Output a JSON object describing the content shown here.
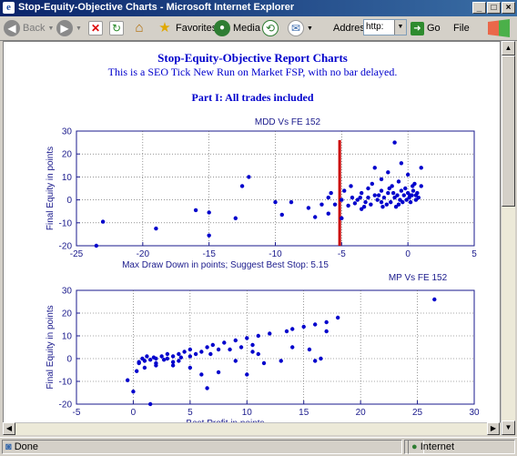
{
  "window": {
    "title": "Stop-Equity-Objective Charts - Microsoft Internet Explorer",
    "buttons": {
      "minimize": "_",
      "maximize": "□",
      "close": "×"
    }
  },
  "toolbar": {
    "back": "Back",
    "favorites": "Favorites",
    "media": "Media",
    "address_label": "Address",
    "address_value": "http:",
    "go": "Go",
    "file_menu": "File"
  },
  "page": {
    "title": "Stop-Equity-Objective Report Charts",
    "subtitle": "This is a SEO Tick New Run on Market FSP, with no bar delayed.",
    "part_heading": "Part I: All trades included"
  },
  "status": {
    "left": "Done",
    "zone": "Internet"
  },
  "colors": {
    "series": "#0000cc",
    "stop_line": "#cc0000",
    "axis_text": "#1a1a8c"
  },
  "chart_data": [
    {
      "type": "scatter",
      "title": "MDD Vs FE  152",
      "xlabel": "Max Draw Down in points; Suggest Best Stop: 5.15",
      "ylabel": "Final Equity in points",
      "xlim": [
        -25,
        5
      ],
      "ylim": [
        -20,
        30
      ],
      "xticks": [
        -25,
        -20,
        -15,
        -10,
        -5,
        0,
        5
      ],
      "yticks": [
        -20,
        -10,
        0,
        10,
        20,
        30
      ],
      "grid": true,
      "stop_line_x": -5.15,
      "points": [
        [
          -23.5,
          -20
        ],
        [
          -23,
          -9.5
        ],
        [
          -19,
          -12.5
        ],
        [
          -16,
          -4.5
        ],
        [
          -15,
          -5.5
        ],
        [
          -15,
          -15.5
        ],
        [
          -13,
          -8
        ],
        [
          -12.5,
          6
        ],
        [
          -12,
          10
        ],
        [
          -10,
          -1
        ],
        [
          -9.5,
          -6.5
        ],
        [
          -8.8,
          -1
        ],
        [
          -7.5,
          -3.5
        ],
        [
          -7,
          -7.5
        ],
        [
          -6.5,
          -2
        ],
        [
          -6,
          -6
        ],
        [
          -6,
          1
        ],
        [
          -5.8,
          3
        ],
        [
          -5.5,
          -2
        ],
        [
          -5,
          -8
        ],
        [
          -5,
          0
        ],
        [
          -4.8,
          4
        ],
        [
          -4.5,
          -2.5
        ],
        [
          -4.3,
          6
        ],
        [
          -4,
          -1.5
        ],
        [
          -3.8,
          0
        ],
        [
          -3.5,
          3
        ],
        [
          -3.5,
          -4
        ],
        [
          -3.2,
          -1
        ],
        [
          -3,
          1
        ],
        [
          -3,
          5
        ],
        [
          -2.8,
          -2
        ],
        [
          -2.5,
          2
        ],
        [
          -2.5,
          14
        ],
        [
          -2.3,
          0
        ],
        [
          -2,
          -1
        ],
        [
          -2,
          4
        ],
        [
          -2,
          9
        ],
        [
          -1.8,
          1
        ],
        [
          -1.6,
          -2
        ],
        [
          -1.5,
          3
        ],
        [
          -1.5,
          12
        ],
        [
          -1.3,
          -1
        ],
        [
          -1.2,
          6
        ],
        [
          -1,
          1
        ],
        [
          -1,
          25
        ],
        [
          -0.9,
          -3
        ],
        [
          -0.8,
          2
        ],
        [
          -0.7,
          8
        ],
        [
          -0.6,
          0
        ],
        [
          -0.5,
          4
        ],
        [
          -0.5,
          16
        ],
        [
          -0.4,
          -1
        ],
        [
          -0.3,
          2
        ],
        [
          -0.2,
          5
        ],
        [
          -0.1,
          0
        ],
        [
          0,
          3
        ],
        [
          0,
          11
        ],
        [
          0.1,
          1
        ],
        [
          0.2,
          -1
        ],
        [
          0.3,
          2
        ],
        [
          0.4,
          4
        ],
        [
          0.5,
          7
        ],
        [
          0.6,
          0
        ],
        [
          0.7,
          3
        ],
        [
          0.8,
          1
        ],
        [
          1,
          6
        ],
        [
          1,
          14
        ],
        [
          -3.3,
          -3
        ],
        [
          -2.7,
          7
        ],
        [
          -1.9,
          -3
        ],
        [
          -1.1,
          3
        ],
        [
          -0.7,
          -2
        ],
        [
          0.15,
          2
        ],
        [
          0.35,
          6
        ],
        [
          0.6,
          2
        ],
        [
          -2.2,
          2
        ],
        [
          -1.4,
          5
        ],
        [
          -3.6,
          1
        ],
        [
          -4.2,
          1
        ]
      ]
    },
    {
      "type": "scatter",
      "title": "MP Vs FE 152",
      "xlabel": "Best Profit in points",
      "ylabel": "Final Equity in points",
      "xlim": [
        -5,
        30
      ],
      "ylim": [
        -20,
        30
      ],
      "xticks": [
        -5,
        0,
        5,
        10,
        15,
        20,
        25,
        30
      ],
      "yticks": [
        -20,
        -10,
        0,
        10,
        20,
        30
      ],
      "grid": true,
      "points": [
        [
          -0.5,
          -9.5
        ],
        [
          0,
          -14.5
        ],
        [
          0.3,
          -5.5
        ],
        [
          1.5,
          -20
        ],
        [
          1,
          -1
        ],
        [
          0.5,
          -2
        ],
        [
          0.8,
          0
        ],
        [
          1.2,
          1
        ],
        [
          1.5,
          -0.5
        ],
        [
          2,
          0
        ],
        [
          2,
          -2
        ],
        [
          2.5,
          1
        ],
        [
          3,
          0
        ],
        [
          3,
          2
        ],
        [
          3.5,
          -3
        ],
        [
          3.5,
          1
        ],
        [
          4,
          2
        ],
        [
          4,
          -1
        ],
        [
          4.5,
          3
        ],
        [
          5,
          4
        ],
        [
          5,
          1
        ],
        [
          5.5,
          2
        ],
        [
          6,
          3
        ],
        [
          6,
          -7
        ],
        [
          6.5,
          -13
        ],
        [
          6.5,
          5
        ],
        [
          7,
          6
        ],
        [
          7.5,
          4
        ],
        [
          8,
          7
        ],
        [
          9,
          8
        ],
        [
          9.5,
          5
        ],
        [
          10,
          9
        ],
        [
          10.5,
          6
        ],
        [
          11,
          10
        ],
        [
          11.5,
          -2
        ],
        [
          12,
          11
        ],
        [
          13,
          -1
        ],
        [
          13.5,
          12
        ],
        [
          14,
          13
        ],
        [
          14,
          5
        ],
        [
          15,
          14
        ],
        [
          15.5,
          4
        ],
        [
          16,
          15
        ],
        [
          16,
          -1
        ],
        [
          16.5,
          0
        ],
        [
          17,
          16
        ],
        [
          17,
          12
        ],
        [
          18,
          18
        ],
        [
          26.5,
          26
        ],
        [
          1,
          -4
        ],
        [
          2,
          -3
        ],
        [
          3.5,
          -1.5
        ],
        [
          5,
          -4
        ],
        [
          7.5,
          -6
        ],
        [
          9,
          -1
        ],
        [
          10,
          -7
        ],
        [
          0.5,
          -1.5
        ],
        [
          1.8,
          0.5
        ],
        [
          2.7,
          -0.5
        ],
        [
          4.2,
          0.5
        ],
        [
          6.8,
          2
        ],
        [
          8.5,
          4
        ],
        [
          10.5,
          3
        ],
        [
          11,
          2
        ]
      ]
    }
  ]
}
